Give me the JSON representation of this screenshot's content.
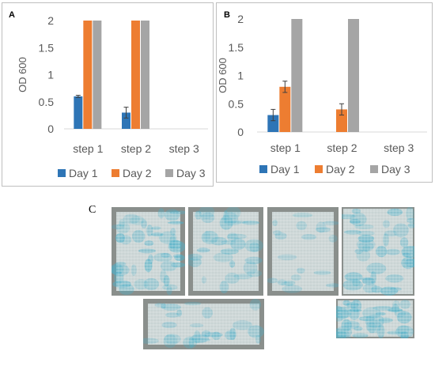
{
  "colors": {
    "day1": "#2E75B6",
    "day2": "#ED7D31",
    "day3": "#A5A5A5",
    "text": "#595959",
    "axis": "#d9d9d9",
    "fabric_bg": "#c9d3d3",
    "fabric_stain": "#4fb0c8"
  },
  "panels": [
    {
      "label": "A",
      "chart_index": 0
    },
    {
      "label": "B",
      "chart_index": 1
    },
    {
      "label": "C"
    }
  ],
  "chart_data": [
    {
      "type": "bar",
      "title": "",
      "xlabel": "",
      "ylabel": "OD 600",
      "ylim": [
        0,
        2
      ],
      "yticks": [
        "0",
        "0.5",
        "1",
        "1.5",
        "2"
      ],
      "categories": [
        "step 1",
        "step 2",
        "step 3"
      ],
      "legend_placement": "bottom",
      "grid": false,
      "series": [
        {
          "name": "Day 1",
          "color": "#2E75B6",
          "values": [
            0.6,
            0.3,
            null
          ],
          "errors": [
            0.02,
            0.1,
            null
          ]
        },
        {
          "name": "Day 2",
          "color": "#ED7D31",
          "values": [
            2,
            2,
            null
          ],
          "errors": [
            null,
            null,
            null
          ]
        },
        {
          "name": "Day 3",
          "color": "#A5A5A5",
          "values": [
            2,
            2,
            null
          ],
          "errors": [
            null,
            null,
            null
          ]
        }
      ]
    },
    {
      "type": "bar",
      "title": "",
      "xlabel": "",
      "ylabel": "OD 600",
      "ylim": [
        0,
        2
      ],
      "yticks": [
        "0",
        "0.5",
        "1",
        "1.5",
        "2"
      ],
      "categories": [
        "step 1",
        "step 2",
        "step 3"
      ],
      "legend_placement": "bottom",
      "grid": false,
      "series": [
        {
          "name": "Day 1",
          "color": "#2E75B6",
          "values": [
            0.3,
            null,
            null
          ],
          "errors": [
            0.1,
            null,
            null
          ]
        },
        {
          "name": "Day 2",
          "color": "#ED7D31",
          "values": [
            0.8,
            0.4,
            null
          ],
          "errors": [
            0.1,
            0.1,
            null
          ]
        },
        {
          "name": "Day 3",
          "color": "#A5A5A5",
          "values": [
            2,
            2,
            null
          ],
          "errors": [
            null,
            null,
            null
          ]
        }
      ]
    }
  ],
  "photos": [
    {
      "name": "fabric-photo-1",
      "stain_level": 0.85
    },
    {
      "name": "fabric-photo-2",
      "stain_level": 0.55
    },
    {
      "name": "fabric-photo-3",
      "stain_level": 0.25
    },
    {
      "name": "fabric-photo-4",
      "stain_level": 0.75
    },
    {
      "name": "fabric-photo-closeup-1",
      "stain_level": 0.4
    },
    {
      "name": "fabric-photo-closeup-2",
      "stain_level": 0.7
    }
  ]
}
